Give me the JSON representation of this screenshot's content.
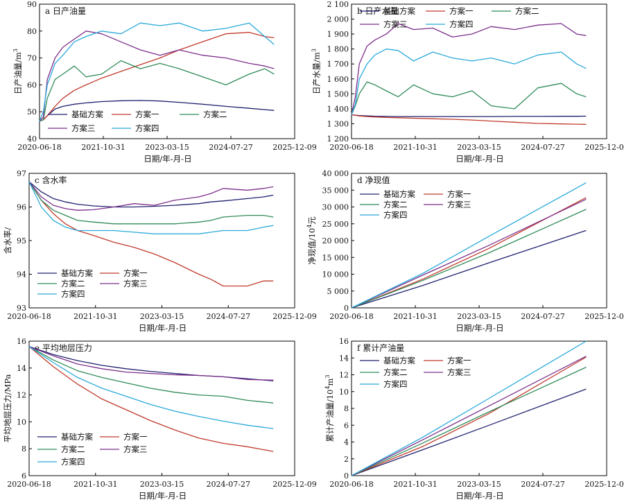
{
  "x_tick_labels": [
    "2020-06-18",
    "2021-10-31",
    "2023-03-15",
    "2024-07-27",
    "2025-12-09"
  ],
  "x_axis_label": "日期/年-月-日",
  "series_names": [
    "基础方案",
    "方案一",
    "方案二",
    "方案三",
    "方案四"
  ],
  "colors": {
    "基础方案": "#1f1f6e",
    "方案一": "#c0392b",
    "方案二": "#2e8b57",
    "方案三": "#7b2d8b",
    "方案四": "#29a9d9"
  },
  "chart_data": [
    {
      "id": "a",
      "type": "line",
      "title": "a 日产油量",
      "ylabel": "日产油量/m",
      "ylabel_sup": "3",
      "ylim": [
        40,
        90
      ],
      "yticks": [
        "40",
        "50",
        "60",
        "70",
        "80",
        "90"
      ],
      "legend_position": "bottom-left",
      "x": [
        "2020-06-18",
        "2020-07-18",
        "2020-08-18",
        "2020-10-18",
        "2020-12-18",
        "2021-03-18",
        "2021-06-18",
        "2021-10-18",
        "2022-03-18",
        "2022-08-18",
        "2023-01-18",
        "2023-06-18",
        "2023-12-18",
        "2024-06-18",
        "2024-12-18",
        "2025-04-18",
        "2025-07-01"
      ],
      "series": [
        {
          "name": "基础方案",
          "values": [
            46.5,
            47,
            48.5,
            51,
            52,
            52.8,
            53.3,
            53.8,
            54.1,
            54.2,
            54,
            53.5,
            52.8,
            52,
            51.3,
            50.8,
            50.5
          ]
        },
        {
          "name": "方案一",
          "values": [
            46.5,
            47,
            48.5,
            52,
            55,
            58,
            60,
            62.5,
            65,
            67.5,
            70,
            73,
            76,
            79,
            79.5,
            78,
            77.5
          ]
        },
        {
          "name": "方案二",
          "values": [
            46.5,
            47,
            55,
            62,
            64,
            67,
            63,
            64,
            69,
            66,
            68,
            66,
            63,
            60,
            64,
            66,
            64
          ]
        },
        {
          "name": "方案三",
          "values": [
            46.5,
            48,
            62,
            70,
            74,
            77,
            80,
            79,
            76,
            73,
            71,
            73,
            71,
            70,
            68,
            67,
            66
          ]
        },
        {
          "name": "方案四",
          "values": [
            46.5,
            50,
            60,
            68,
            71,
            76,
            78,
            80,
            79,
            83,
            82,
            83,
            80,
            81,
            83,
            78,
            75
          ]
        }
      ]
    },
    {
      "id": "b",
      "type": "line",
      "title": "b 日产水量",
      "ylabel": "日产水量/m",
      "ylabel_sup": "3",
      "ylim": [
        1200,
        2100
      ],
      "yticks": [
        "1 200",
        "1 300",
        "1 400",
        "1 500",
        "1 600",
        "1 700",
        "1 800",
        "1 900",
        "2 000",
        "2 100"
      ],
      "legend_position": "top",
      "x": [
        "2020-06-18",
        "2020-07-18",
        "2020-08-18",
        "2020-10-18",
        "2020-12-18",
        "2021-03-18",
        "2021-06-18",
        "2021-10-18",
        "2022-03-18",
        "2022-08-18",
        "2023-01-18",
        "2023-06-18",
        "2023-12-18",
        "2024-06-18",
        "2024-12-18",
        "2025-04-18",
        "2025-07-01"
      ],
      "series": [
        {
          "name": "基础方案",
          "values": [
            1360,
            1357,
            1355,
            1352,
            1350,
            1349,
            1348,
            1348,
            1348,
            1348,
            1348,
            1348,
            1349,
            1349,
            1350,
            1350,
            1351
          ]
        },
        {
          "name": "方案一",
          "values": [
            1360,
            1356,
            1352,
            1348,
            1345,
            1342,
            1340,
            1337,
            1333,
            1330,
            1325,
            1318,
            1310,
            1302,
            1299,
            1297,
            1296
          ]
        },
        {
          "name": "方案二",
          "values": [
            1360,
            1420,
            1500,
            1580,
            1560,
            1520,
            1480,
            1560,
            1500,
            1480,
            1520,
            1420,
            1400,
            1540,
            1570,
            1500,
            1480
          ]
        },
        {
          "name": "方案三",
          "values": [
            1360,
            1480,
            1700,
            1820,
            1860,
            1900,
            1970,
            1930,
            1940,
            1880,
            1900,
            1950,
            1930,
            1960,
            1970,
            1900,
            1890
          ]
        },
        {
          "name": "方案四",
          "values": [
            1360,
            1430,
            1600,
            1700,
            1760,
            1800,
            1790,
            1720,
            1780,
            1740,
            1720,
            1740,
            1700,
            1760,
            1780,
            1700,
            1670
          ]
        }
      ]
    },
    {
      "id": "c",
      "type": "line",
      "title": "c 含水率",
      "ylabel": "含水率/",
      "ylabel_sup": "",
      "ylim": [
        93,
        97
      ],
      "yticks": [
        "93",
        "94",
        "95",
        "96",
        "97"
      ],
      "legend_position": "bottom-left",
      "x": [
        "2020-06-18",
        "2020-09-18",
        "2020-12-18",
        "2021-03-18",
        "2021-06-18",
        "2021-10-18",
        "2022-03-18",
        "2022-08-18",
        "2023-01-18",
        "2023-06-18",
        "2023-12-18",
        "2024-03-18",
        "2024-06-18",
        "2024-12-18",
        "2025-04-18",
        "2025-07-01"
      ],
      "series": [
        {
          "name": "基础方案",
          "values": [
            96.75,
            96.45,
            96.25,
            96.15,
            96.08,
            96.03,
            96.0,
            96.0,
            96.02,
            96.05,
            96.1,
            96.15,
            96.18,
            96.25,
            96.3,
            96.35
          ]
        },
        {
          "name": "方案一",
          "values": [
            96.75,
            96.2,
            95.8,
            95.5,
            95.3,
            95.15,
            94.95,
            94.8,
            94.6,
            94.35,
            94.0,
            93.85,
            93.65,
            93.65,
            93.8,
            93.8
          ]
        },
        {
          "name": "方案二",
          "values": [
            96.75,
            96.2,
            95.9,
            95.75,
            95.6,
            95.55,
            95.5,
            95.5,
            95.5,
            95.5,
            95.55,
            95.6,
            95.7,
            95.75,
            95.75,
            95.7
          ]
        },
        {
          "name": "方案三",
          "values": [
            96.75,
            96.3,
            96.05,
            95.95,
            95.9,
            95.92,
            96.0,
            96.1,
            96.05,
            96.2,
            96.3,
            96.4,
            96.55,
            96.5,
            96.55,
            96.6
          ]
        },
        {
          "name": "方案四",
          "values": [
            96.75,
            96.0,
            95.6,
            95.4,
            95.3,
            95.3,
            95.3,
            95.25,
            95.2,
            95.2,
            95.2,
            95.25,
            95.3,
            95.3,
            95.4,
            95.45
          ]
        }
      ]
    },
    {
      "id": "d",
      "type": "line",
      "title": "d 净现值",
      "ylabel": "净现值/10",
      "ylabel_sup": "4",
      "ylabel_unit": "元",
      "ylim": [
        0,
        40000
      ],
      "yticks": [
        "0",
        "5 000",
        "10 000",
        "15 000",
        "20 000",
        "25 000",
        "30 000",
        "35 000",
        "40 000"
      ],
      "legend_position": "top-left",
      "x": [
        "2020-06-18",
        "2022-01-01",
        "2023-06-01",
        "2025-07-01"
      ],
      "series": [
        {
          "name": "基础方案",
          "values": [
            0,
            6700,
            13400,
            23000
          ]
        },
        {
          "name": "方案一",
          "values": [
            0,
            8600,
            17700,
            32800
          ]
        },
        {
          "name": "方案二",
          "values": [
            0,
            8200,
            16400,
            29300
          ]
        },
        {
          "name": "方案三",
          "values": [
            0,
            9800,
            18600,
            32300
          ]
        },
        {
          "name": "方案四",
          "values": [
            0,
            10300,
            21300,
            37200
          ]
        }
      ]
    },
    {
      "id": "e",
      "type": "line",
      "title": "e 平均地层压力",
      "ylabel": "平均地层压力/MPa",
      "ylabel_sup": "",
      "ylim": [
        6,
        16
      ],
      "yticks": [
        "6",
        "8",
        "10",
        "12",
        "14",
        "16"
      ],
      "legend_position": "bottom-left",
      "x": [
        "2020-06-18",
        "2020-12-18",
        "2021-06-18",
        "2021-12-18",
        "2022-06-18",
        "2022-12-18",
        "2023-06-18",
        "2023-12-18",
        "2024-06-18",
        "2024-12-18",
        "2025-07-01"
      ],
      "series": [
        {
          "name": "基础方案",
          "values": [
            15.6,
            15.0,
            14.55,
            14.2,
            13.95,
            13.75,
            13.6,
            13.45,
            13.35,
            13.2,
            13.05
          ]
        },
        {
          "name": "方案一",
          "values": [
            15.6,
            14.1,
            12.8,
            11.7,
            10.9,
            10.1,
            9.4,
            8.8,
            8.4,
            8.15,
            7.8
          ]
        },
        {
          "name": "方案二",
          "values": [
            15.6,
            14.6,
            13.8,
            13.3,
            12.9,
            12.5,
            12.2,
            12.0,
            11.9,
            11.6,
            11.4
          ]
        },
        {
          "name": "方案三",
          "values": [
            15.6,
            14.9,
            14.3,
            13.95,
            13.7,
            13.6,
            13.5,
            13.45,
            13.35,
            13.15,
            13.1
          ]
        },
        {
          "name": "方案四",
          "values": [
            15.6,
            14.4,
            13.3,
            12.5,
            11.9,
            11.3,
            10.8,
            10.4,
            10.05,
            9.75,
            9.5
          ]
        }
      ]
    },
    {
      "id": "f",
      "type": "line",
      "title": "f 累计产油量",
      "ylabel": "累计产油量/10",
      "ylabel_sup": "4",
      "ylabel_unit": "m",
      "ylabel_sup2": "3",
      "ylim": [
        0,
        16
      ],
      "yticks": [
        "0",
        "2",
        "4",
        "6",
        "8",
        "10",
        "12",
        "14",
        "16"
      ],
      "legend_position": "top-left",
      "x": [
        "2020-06-18",
        "2022-01-01",
        "2023-06-01",
        "2025-07-01"
      ],
      "series": [
        {
          "name": "基础方案",
          "values": [
            0,
            3.1,
            6.0,
            10.3
          ]
        },
        {
          "name": "方案一",
          "values": [
            0,
            3.5,
            7.4,
            14.1
          ]
        },
        {
          "name": "方案二",
          "values": [
            0,
            3.9,
            7.6,
            12.9
          ]
        },
        {
          "name": "方案三",
          "values": [
            0,
            4.3,
            8.3,
            14.2
          ]
        },
        {
          "name": "方案四",
          "values": [
            0,
            4.6,
            9.2,
            16.0
          ]
        }
      ]
    }
  ]
}
